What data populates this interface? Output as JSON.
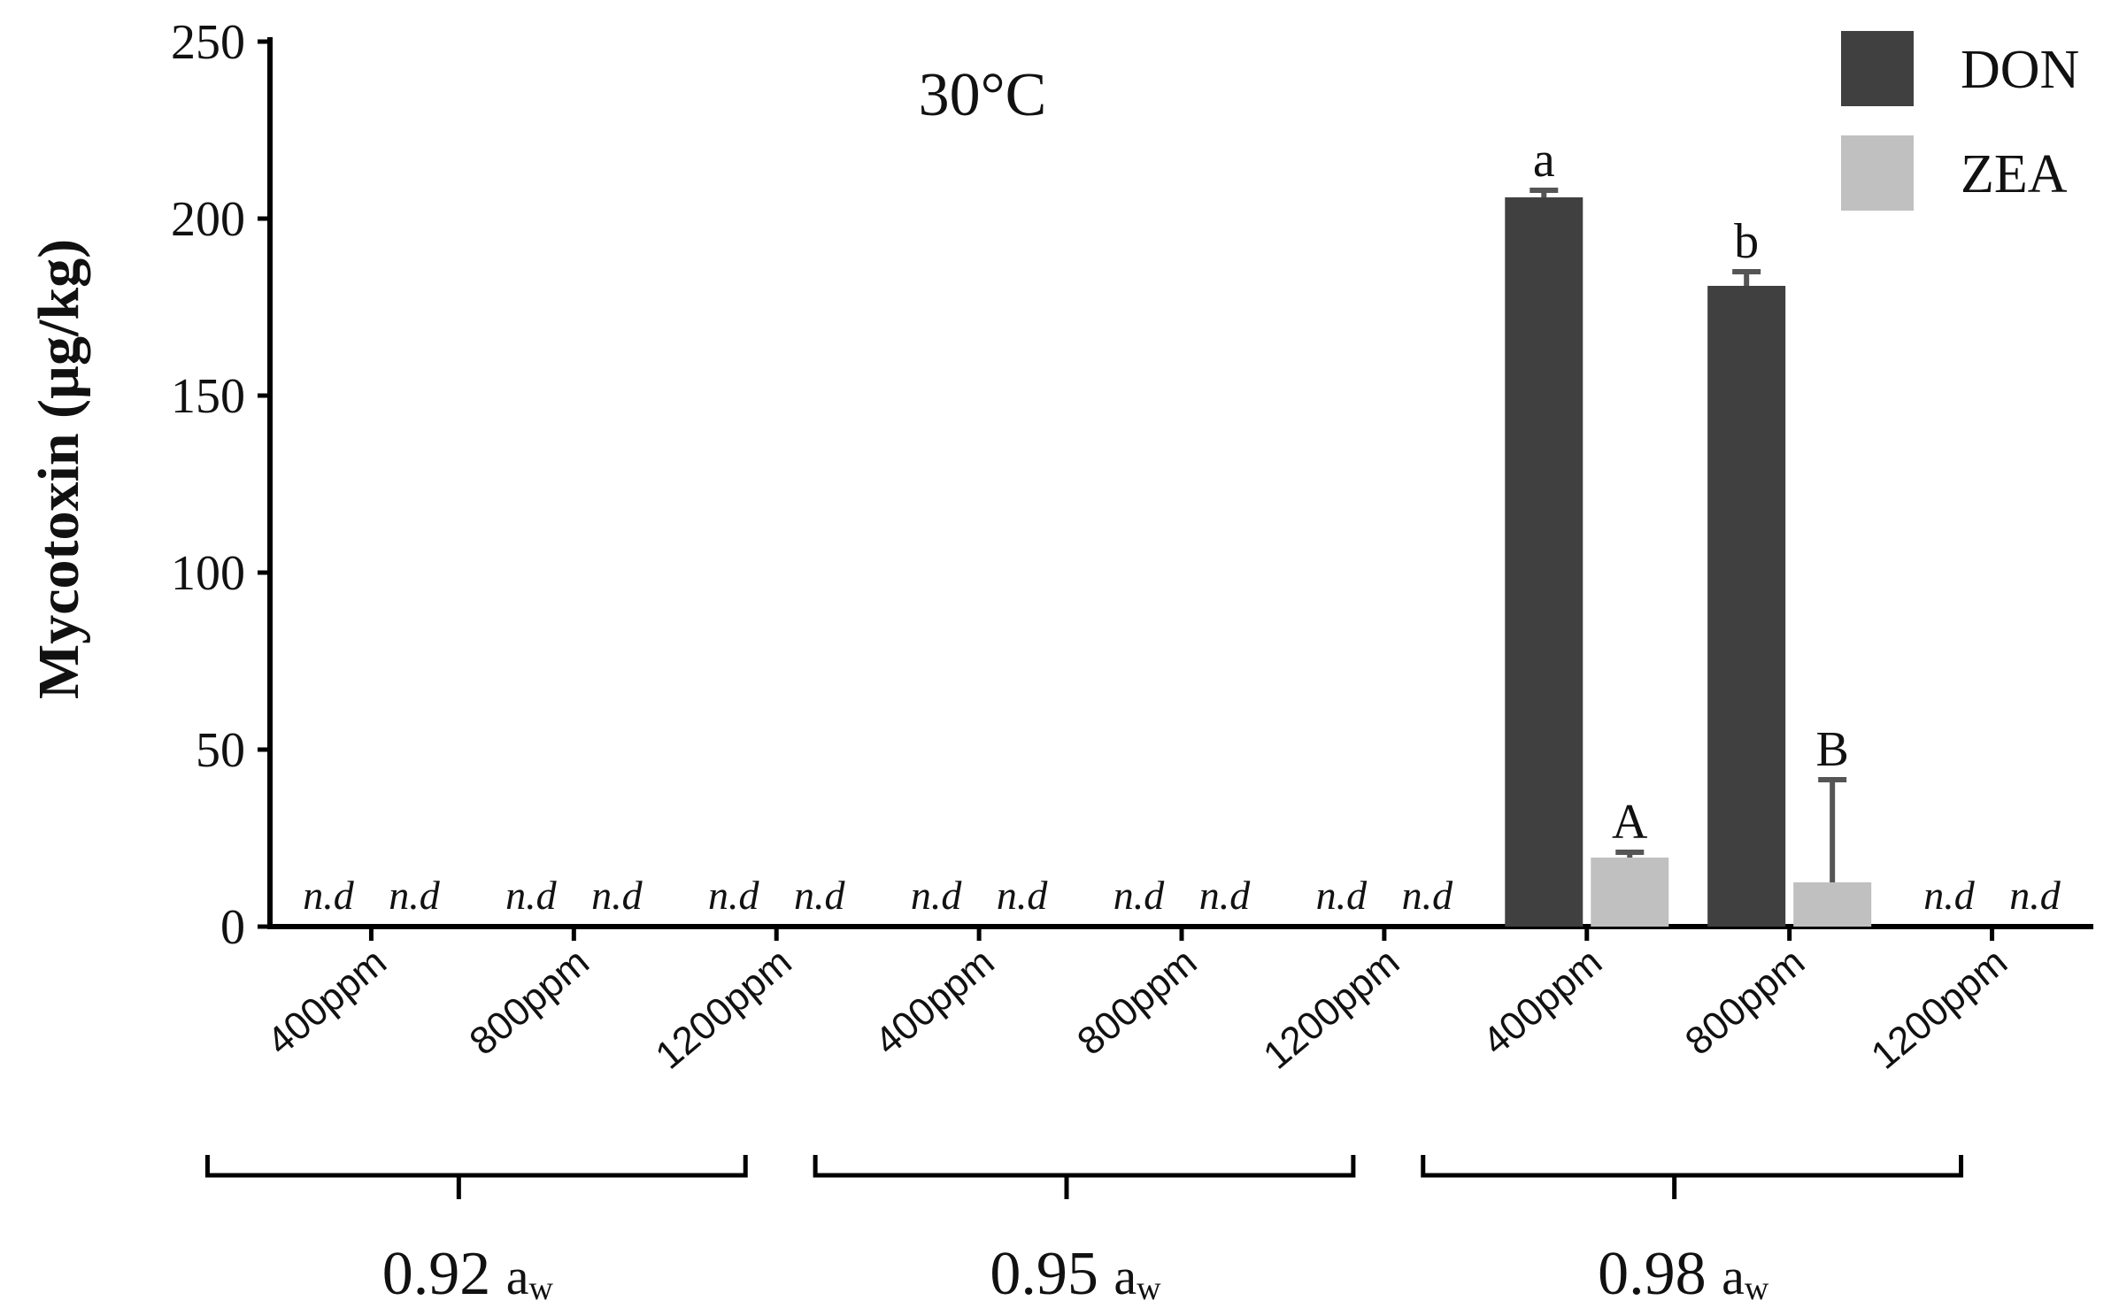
{
  "chart_data": {
    "type": "bar",
    "title": "30°C",
    "ylabel": "Mycotoxin (µg/kg)",
    "ylim": [
      0,
      250
    ],
    "yticks": [
      "0",
      "50",
      "100",
      "150",
      "200",
      "250"
    ],
    "categories": [
      "400ppm",
      "800ppm",
      "1200ppm",
      "400ppm",
      "800ppm",
      "1200ppm",
      "400ppm",
      "800ppm",
      "1200ppm"
    ],
    "groups": [
      {
        "label": "0.92",
        "sub": "a",
        "subscript": "w"
      },
      {
        "label": "0.95",
        "sub": "a",
        "subscript": "w"
      },
      {
        "label": "0.98",
        "sub": "a",
        "subscript": "w"
      }
    ],
    "series": [
      {
        "name": "DON",
        "color": "#404040",
        "values": [
          null,
          null,
          null,
          null,
          null,
          null,
          206,
          181,
          null
        ],
        "errors": [
          null,
          null,
          null,
          null,
          null,
          null,
          2,
          4,
          null
        ],
        "labels": [
          "n.d",
          "n.d",
          "n.d",
          "n.d",
          "n.d",
          "n.d",
          "a",
          "b",
          "n.d"
        ]
      },
      {
        "name": "ZEA",
        "color": "#c0c0c0",
        "values": [
          null,
          null,
          null,
          null,
          null,
          null,
          19.5,
          12.5,
          null
        ],
        "errors": [
          null,
          null,
          null,
          null,
          null,
          null,
          1.5,
          29,
          null
        ],
        "labels": [
          "n.d",
          "n.d",
          "n.d",
          "n.d",
          "n.d",
          "n.d",
          "A",
          "B",
          "n.d"
        ]
      }
    ],
    "legend_position": "top-right",
    "grid": false
  }
}
